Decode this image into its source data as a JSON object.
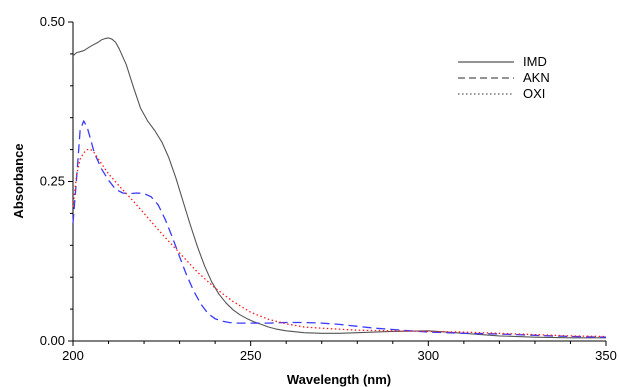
{
  "chart_data": {
    "type": "line",
    "title": "",
    "xlabel": "Wavelength (nm)",
    "ylabel": "Absorbance",
    "xlim": [
      200,
      350
    ],
    "ylim": [
      0,
      0.5
    ],
    "xticks": [
      200,
      250,
      300,
      350
    ],
    "yticks": [
      0,
      0.25,
      0.5
    ],
    "xtick_labels": [
      "200",
      "250",
      "300",
      "350"
    ],
    "ytick_labels": [
      "0.00",
      "0.25",
      "0.50"
    ],
    "grid": false,
    "legend": "top-right",
    "series": [
      {
        "name": "IMD",
        "color": "#555555",
        "dash": "solid",
        "x": [
          200,
          201,
          203,
          205,
          207,
          208,
          209,
          210,
          211,
          212,
          213,
          215,
          217,
          219,
          221,
          223,
          225,
          227,
          229,
          231,
          233,
          235,
          237,
          239,
          241,
          243,
          245,
          247,
          249,
          251,
          253,
          255,
          257,
          260,
          265,
          270,
          275,
          280,
          290,
          300,
          310,
          320,
          330,
          340,
          350
        ],
        "y": [
          0.447,
          0.452,
          0.455,
          0.462,
          0.468,
          0.472,
          0.474,
          0.475,
          0.473,
          0.468,
          0.458,
          0.433,
          0.398,
          0.365,
          0.345,
          0.33,
          0.312,
          0.287,
          0.255,
          0.218,
          0.182,
          0.148,
          0.118,
          0.093,
          0.074,
          0.06,
          0.049,
          0.041,
          0.035,
          0.03,
          0.026,
          0.022,
          0.019,
          0.016,
          0.013,
          0.012,
          0.012,
          0.013,
          0.015,
          0.016,
          0.012,
          0.008,
          0.006,
          0.005,
          0.005
        ]
      },
      {
        "name": "AKN",
        "color": "#3a3aff",
        "dash": "dashed",
        "x": [
          200,
          201,
          202,
          203,
          204,
          205,
          206,
          208,
          210,
          212,
          214,
          216,
          218,
          220,
          222,
          224,
          226,
          228,
          230,
          232,
          234,
          236,
          238,
          240,
          242,
          244,
          246,
          248,
          250,
          255,
          260,
          265,
          270,
          275,
          280,
          285,
          290,
          300,
          310,
          320,
          330,
          340,
          350
        ],
        "y": [
          0.185,
          0.255,
          0.33,
          0.345,
          0.335,
          0.315,
          0.295,
          0.27,
          0.252,
          0.238,
          0.232,
          0.231,
          0.232,
          0.231,
          0.226,
          0.213,
          0.19,
          0.162,
          0.132,
          0.103,
          0.078,
          0.058,
          0.043,
          0.035,
          0.031,
          0.029,
          0.028,
          0.028,
          0.028,
          0.028,
          0.029,
          0.029,
          0.028,
          0.026,
          0.023,
          0.02,
          0.018,
          0.014,
          0.012,
          0.011,
          0.009,
          0.007,
          0.006
        ]
      },
      {
        "name": "OXI",
        "color": "#ff1a1a",
        "dash": "dotted",
        "x": [
          200,
          201,
          202,
          203,
          204,
          205,
          206,
          208,
          210,
          213,
          216,
          220,
          225,
          230,
          235,
          240,
          245,
          250,
          255,
          260,
          265,
          270,
          280,
          290,
          300,
          310,
          320,
          330,
          340,
          350
        ],
        "y": [
          0.21,
          0.26,
          0.285,
          0.295,
          0.3,
          0.3,
          0.295,
          0.278,
          0.262,
          0.243,
          0.225,
          0.2,
          0.168,
          0.138,
          0.108,
          0.083,
          0.062,
          0.045,
          0.034,
          0.027,
          0.022,
          0.02,
          0.017,
          0.016,
          0.015,
          0.014,
          0.012,
          0.01,
          0.008,
          0.007
        ]
      }
    ]
  }
}
